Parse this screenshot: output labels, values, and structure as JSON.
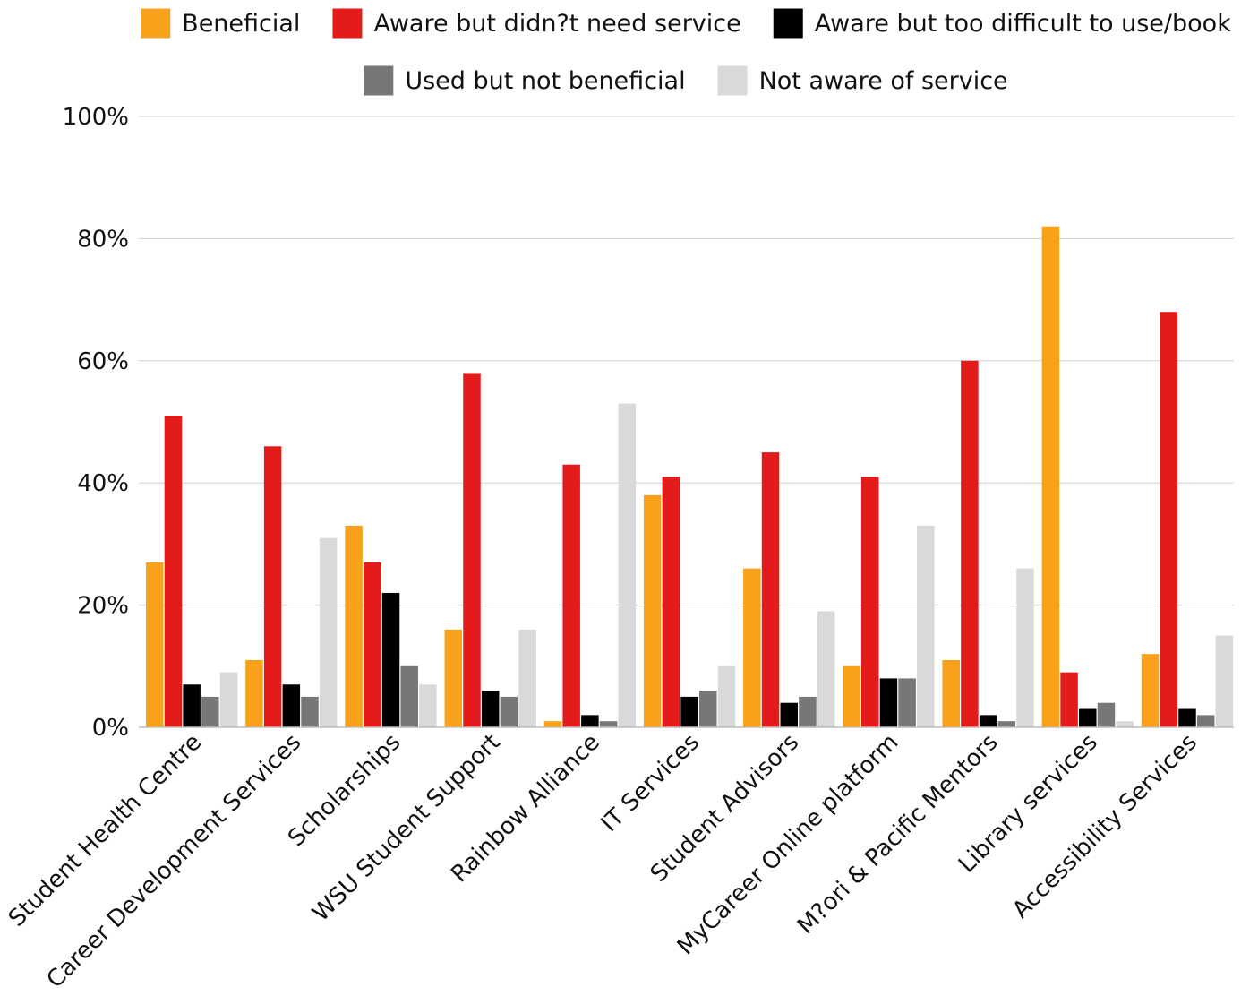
{
  "chart_data": {
    "type": "bar",
    "title": "",
    "xlabel": "",
    "ylabel": "",
    "ylim": [
      0,
      100
    ],
    "y_ticks": [
      "0%",
      "20%",
      "40%",
      "60%",
      "80%",
      "100%"
    ],
    "grid": true,
    "legend_position": "top-center",
    "categories": [
      "Student Health Centre",
      "Career Development Services",
      "Scholarships",
      "WSU Student Support",
      "Rainbow Alliance",
      "IT Services",
      "Student Advisors",
      "MyCareer Online platform",
      "M?ori & Pacific Mentors",
      "Library services",
      "Accessibility Services"
    ],
    "series": [
      {
        "name": "Beneficial",
        "color": "#F9A11B",
        "values": [
          27,
          11,
          33,
          16,
          1,
          38,
          26,
          10,
          11,
          82,
          12
        ]
      },
      {
        "name": "Aware but didn?t need service",
        "color": "#E31B1B",
        "values": [
          51,
          46,
          27,
          58,
          43,
          41,
          45,
          41,
          60,
          9,
          68
        ]
      },
      {
        "name": "Aware but too difficult to use/book",
        "color": "#000000",
        "values": [
          7,
          7,
          22,
          6,
          2,
          5,
          4,
          8,
          2,
          3,
          3
        ]
      },
      {
        "name": "Used but not beneficial",
        "color": "#777777",
        "values": [
          5,
          5,
          10,
          5,
          1,
          6,
          5,
          8,
          1,
          4,
          2
        ]
      },
      {
        "name": "Not aware of service",
        "color": "#D9D9D9",
        "values": [
          9,
          31,
          7,
          16,
          53,
          10,
          19,
          33,
          26,
          1,
          15
        ]
      }
    ]
  }
}
